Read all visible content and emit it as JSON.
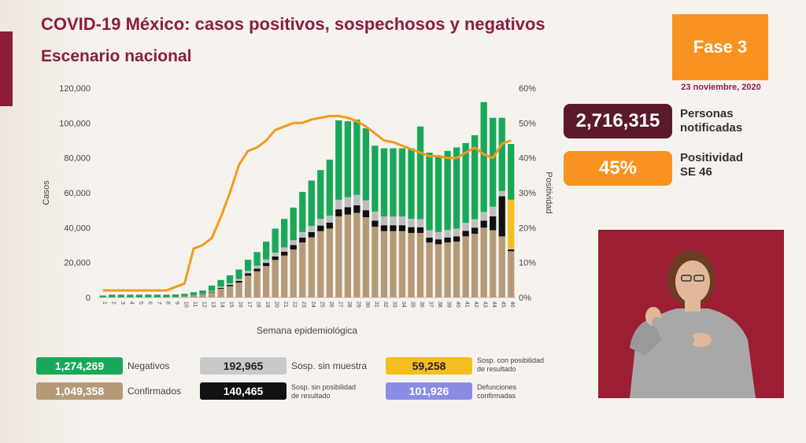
{
  "header": {
    "title": "COVID-19 México: casos positivos, sospechosos y negativos",
    "subtitle": "Escenario nacional",
    "phase": "Fase 3",
    "date": "23 noviembre, 2020"
  },
  "stats": {
    "notified_value": "2,716,315",
    "notified_label_1": "Personas",
    "notified_label_2": "notificadas",
    "positivity_value": "45%",
    "positivity_label_1": "Positividad",
    "positivity_label_2": "SE 46"
  },
  "legend": {
    "negativos_value": "1,274,269",
    "negativos_label": "Negativos",
    "confirmados_value": "1,049,358",
    "confirmados_label": "Confirmados",
    "sin_muestra_value": "192,965",
    "sin_muestra_label": "Sosp. sin muestra",
    "sin_posibilidad_value": "140,465",
    "sin_posibilidad_label_1": "Sosp. sin posibilidad",
    "sin_posibilidad_label_2": "de resultado",
    "con_posibilidad_value": "59,258",
    "con_posibilidad_label_1": "Sosp. con posibilidad",
    "con_posibilidad_label_2": "de resultado",
    "defunciones_value": "101,926",
    "defunciones_label_1": "Defunciones",
    "defunciones_label_2": "confirmadas"
  },
  "colors": {
    "confirmados": "#b59a78",
    "sin_posibilidad": "#111111",
    "sin_muestra": "#bdbdbd",
    "con_posibilidad": "#f5bd1f",
    "negativos": "#19a85a",
    "positividad": "#f39a1e",
    "defunciones": "#8c8ce6",
    "brand": "#8a1e3c"
  },
  "chart_data": {
    "type": "bar",
    "stacked": true,
    "xlabel": "Semana epidemiológica",
    "ylabel": "Casos",
    "y2label": "Positividad",
    "ylim": [
      0,
      120000
    ],
    "y2lim": [
      0,
      60
    ],
    "y_ticks": [
      "0",
      "20,000",
      "40,000",
      "60,000",
      "80,000",
      "100,000",
      "120,000"
    ],
    "y2_ticks": [
      "0%",
      "10%",
      "20%",
      "30%",
      "40%",
      "50%",
      "60%"
    ],
    "categories": [
      "1",
      "2",
      "3",
      "4",
      "5",
      "6",
      "7",
      "8",
      "9",
      "10",
      "11",
      "12",
      "13",
      "14",
      "15",
      "16",
      "17",
      "18",
      "19",
      "20",
      "21",
      "22",
      "23",
      "24",
      "25",
      "26",
      "27",
      "28",
      "29",
      "30",
      "31",
      "32",
      "33",
      "34",
      "35",
      "36",
      "37",
      "38",
      "39",
      "40",
      "41",
      "42",
      "43",
      "44",
      "45",
      "46"
    ],
    "series": [
      {
        "name": "Confirmados",
        "values": [
          100,
          100,
          100,
          100,
          100,
          100,
          100,
          100,
          200,
          500,
          1000,
          1500,
          3000,
          5000,
          6500,
          8500,
          12500,
          15000,
          18000,
          21500,
          24000,
          27500,
          31500,
          34500,
          38000,
          39500,
          46500,
          47500,
          48500,
          46000,
          40500,
          38000,
          38000,
          38000,
          37000,
          37000,
          31500,
          30500,
          31500,
          32000,
          35000,
          36500,
          40000,
          38500,
          35000,
          26500
        ]
      },
      {
        "name": "Sosp. sin posibilidad de resultado",
        "values": [
          0,
          0,
          0,
          0,
          0,
          0,
          0,
          0,
          0,
          0,
          100,
          200,
          300,
          500,
          700,
          1000,
          1300,
          1500,
          1800,
          2000,
          2200,
          2500,
          2800,
          3000,
          3200,
          3400,
          4000,
          4200,
          4300,
          4000,
          3500,
          3400,
          3400,
          3400,
          3300,
          3200,
          2800,
          2800,
          2900,
          3000,
          3200,
          3500,
          4000,
          8000,
          23000,
          1000
        ]
      },
      {
        "name": "Sosp. sin muestra",
        "values": [
          0,
          0,
          0,
          0,
          0,
          0,
          0,
          0,
          0,
          100,
          200,
          300,
          500,
          700,
          900,
          1100,
          1500,
          1700,
          2000,
          2200,
          2500,
          2800,
          3200,
          3500,
          3800,
          4000,
          5500,
          5800,
          6000,
          5700,
          5200,
          5000,
          5000,
          5000,
          4800,
          4700,
          4200,
          4200,
          4300,
          4400,
          4600,
          4800,
          5000,
          5500,
          3000,
          500
        ]
      },
      {
        "name": "Sosp. con posibilidad de resultado",
        "values": [
          0,
          0,
          0,
          0,
          0,
          0,
          0,
          0,
          0,
          0,
          0,
          0,
          0,
          0,
          0,
          0,
          0,
          0,
          0,
          0,
          0,
          0,
          0,
          0,
          0,
          0,
          0,
          0,
          0,
          0,
          0,
          0,
          0,
          0,
          0,
          0,
          0,
          0,
          0,
          0,
          0,
          0,
          0,
          0,
          0,
          28000
        ]
      },
      {
        "name": "Negativos",
        "values": [
          1000,
          1500,
          1500,
          1500,
          1500,
          1500,
          1500,
          1500,
          1500,
          1500,
          1700,
          2000,
          3000,
          3800,
          4600,
          5400,
          6300,
          7800,
          10200,
          13800,
          16300,
          18700,
          23000,
          26000,
          28000,
          32100,
          45500,
          43500,
          43200,
          41300,
          37800,
          39100,
          39100,
          39100,
          40400,
          53100,
          44500,
          43500,
          45300,
          46600,
          45700,
          48200,
          63000,
          51000,
          42000,
          32000
        ]
      }
    ],
    "positivity": [
      2,
      2,
      2,
      2,
      2,
      2,
      2,
      2,
      3,
      4,
      14,
      15,
      17,
      23,
      30,
      38,
      42,
      43,
      45,
      48,
      49,
      50,
      50,
      51,
      51.5,
      52,
      52,
      51.5,
      50.5,
      49,
      47,
      45,
      44.5,
      43.5,
      42.5,
      41.5,
      40.5,
      40.5,
      40,
      40,
      41.5,
      43,
      41,
      40,
      44,
      45
    ]
  }
}
